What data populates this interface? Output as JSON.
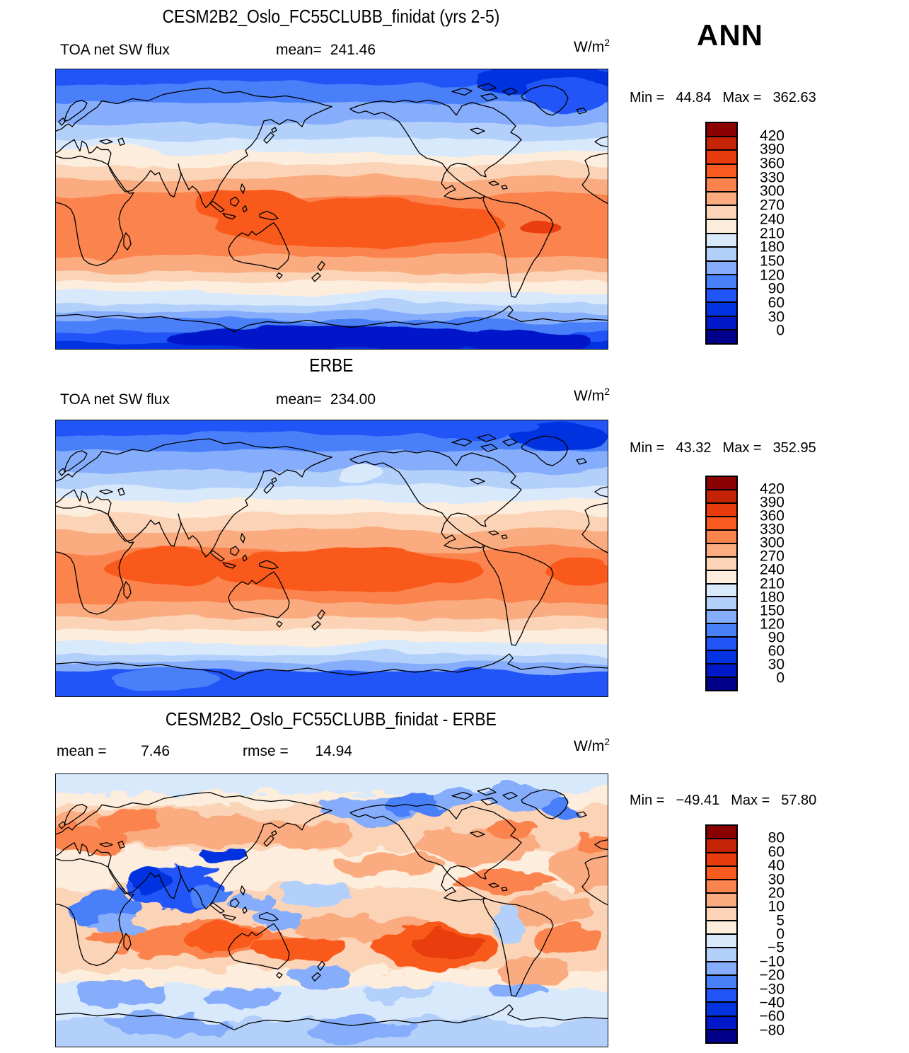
{
  "season": "ANN",
  "chart_data": [
    {
      "type": "contour-map",
      "title": "CESM2B2_Oslo_FC55CLUBB_finidat (yrs 2-5)",
      "var_label": "TOA net SW flux",
      "mean_label": "mean=",
      "mean": "241.46",
      "units_base": "W/m",
      "units_exp": "2",
      "min_label": "Min =",
      "min": "44.84",
      "max_label": "Max =",
      "max": "362.63",
      "legend_position": "right",
      "levels": [
        0,
        30,
        60,
        90,
        120,
        150,
        180,
        210,
        240,
        270,
        300,
        330,
        360,
        390,
        420
      ],
      "colorbar_ticks": [
        "420",
        "390",
        "360",
        "330",
        "300",
        "270",
        "240",
        "210",
        "180",
        "150",
        "120",
        "90",
        "60",
        "30",
        "0"
      ],
      "palette": [
        "#00008B",
        "#0019C8",
        "#0133E0",
        "#2255F7",
        "#4880FA",
        "#85ADFB",
        "#B3D0FA",
        "#D9E9FC",
        "#FDEDDC",
        "#FBD3B7",
        "#FAAC80",
        "#FB834E",
        "#F95A1F",
        "#E93C0E",
        "#C42305",
        "#8B0000"
      ],
      "zonal_bands": [
        [
          0,
          5,
          3
        ],
        [
          5,
          12,
          4
        ],
        [
          12,
          19,
          5
        ],
        [
          19,
          25,
          6
        ],
        [
          25,
          30,
          7
        ],
        [
          30,
          34,
          8
        ],
        [
          34,
          39,
          9
        ],
        [
          39,
          45,
          10
        ],
        [
          45,
          67,
          11
        ],
        [
          67,
          72,
          10
        ],
        [
          72,
          76,
          9
        ],
        [
          76,
          80,
          8
        ],
        [
          80,
          84,
          7
        ],
        [
          84,
          87,
          6
        ],
        [
          87,
          90,
          5
        ],
        [
          90,
          94,
          4
        ],
        [
          94,
          97,
          3
        ],
        [
          97,
          100,
          2
        ]
      ],
      "features": [
        [
          55,
          55,
          26,
          9,
          12
        ],
        [
          36,
          49,
          11,
          6,
          12
        ],
        [
          63,
          56,
          14,
          5,
          12
        ],
        [
          88,
          57,
          4,
          3,
          13
        ],
        [
          89,
          4,
          13,
          6,
          2
        ],
        [
          93,
          9,
          8,
          6,
          3
        ],
        [
          33,
          27,
          5,
          3,
          7
        ],
        [
          12,
          31,
          8,
          4,
          8
        ],
        [
          50,
          96,
          30,
          4,
          1
        ],
        [
          85,
          97,
          12,
          4,
          1
        ]
      ]
    },
    {
      "type": "contour-map",
      "title": "ERBE",
      "var_label": "TOA net SW flux",
      "mean_label": "mean=",
      "mean": "234.00",
      "units_base": "W/m",
      "units_exp": "2",
      "min_label": "Min =",
      "min": "43.32",
      "max_label": "Max =",
      "max": "352.95",
      "legend_position": "right",
      "levels": [
        0,
        30,
        60,
        90,
        120,
        150,
        180,
        210,
        240,
        270,
        300,
        330,
        360,
        390,
        420
      ],
      "colorbar_ticks": [
        "420",
        "390",
        "360",
        "330",
        "300",
        "270",
        "240",
        "210",
        "180",
        "150",
        "120",
        "90",
        "60",
        "30",
        "0"
      ],
      "palette": [
        "#00008B",
        "#0019C8",
        "#0133E0",
        "#2255F7",
        "#4880FA",
        "#85ADFB",
        "#B3D0FA",
        "#D9E9FC",
        "#FDEDDC",
        "#FBD3B7",
        "#FAAC80",
        "#FB834E",
        "#F95A1F",
        "#E93C0E",
        "#C42305",
        "#8B0000"
      ],
      "zonal_bands": [
        [
          0,
          5,
          3
        ],
        [
          5,
          11,
          4
        ],
        [
          11,
          18,
          5
        ],
        [
          18,
          24,
          6
        ],
        [
          24,
          29,
          7
        ],
        [
          29,
          34,
          8
        ],
        [
          34,
          40,
          9
        ],
        [
          40,
          47,
          10
        ],
        [
          47,
          66,
          11
        ],
        [
          66,
          71,
          10
        ],
        [
          71,
          76,
          9
        ],
        [
          76,
          81,
          8
        ],
        [
          81,
          85,
          7
        ],
        [
          85,
          88,
          6
        ],
        [
          88,
          91,
          5
        ],
        [
          91,
          100,
          3
        ]
      ],
      "features": [
        [
          53,
          54,
          24,
          8,
          12
        ],
        [
          20,
          53,
          11,
          6,
          12
        ],
        [
          95,
          55,
          6,
          5,
          12
        ],
        [
          91,
          6,
          9,
          5,
          2
        ],
        [
          79,
          3,
          8,
          4,
          3
        ],
        [
          55,
          20,
          4,
          3,
          7
        ],
        [
          50,
          95,
          35,
          4,
          3
        ],
        [
          20,
          94,
          10,
          3,
          4
        ]
      ]
    },
    {
      "type": "contour-map-difference",
      "title": "CESM2B2_Oslo_FC55CLUBB_finidat - ERBE",
      "mean_label": "mean =",
      "mean": "7.46",
      "rmse_label": "rmse =",
      "rmse": "14.94",
      "units_base": "W/m",
      "units_exp": "2",
      "min_label": "Min =",
      "min": "−49.41",
      "max_label": "Max =",
      "max": "57.80",
      "legend_position": "right",
      "levels": [
        -80,
        -60,
        -40,
        -30,
        -20,
        -10,
        -5,
        0,
        5,
        10,
        20,
        30,
        40,
        60,
        80
      ],
      "colorbar_ticks": [
        "80",
        "60",
        "40",
        "30",
        "20",
        "10",
        "5",
        "0",
        "−5",
        "−10",
        "−20",
        "−30",
        "−40",
        "−60",
        "−80"
      ],
      "palette": [
        "#00008B",
        "#0019C8",
        "#0133E0",
        "#2255F7",
        "#4880FA",
        "#85ADFB",
        "#B3D0FA",
        "#D9E9FC",
        "#FDEDDC",
        "#FBD3B7",
        "#FAAC80",
        "#FB834E",
        "#F95A1F",
        "#E93C0E",
        "#C42305",
        "#8B0000"
      ],
      "zonal_bands": [
        [
          0,
          7,
          7
        ],
        [
          7,
          12,
          8
        ],
        [
          12,
          28,
          9
        ],
        [
          28,
          42,
          8
        ],
        [
          42,
          72,
          9
        ],
        [
          72,
          78,
          8
        ],
        [
          78,
          90,
          7
        ],
        [
          90,
          100,
          6
        ]
      ],
      "features": [
        [
          17,
          20,
          21,
          7,
          10
        ],
        [
          44,
          23,
          9,
          5,
          10
        ],
        [
          60,
          33,
          10,
          4,
          10
        ],
        [
          76,
          26,
          11,
          6,
          10
        ],
        [
          96,
          33,
          6,
          10,
          10
        ],
        [
          81,
          39,
          9,
          4,
          11
        ],
        [
          90,
          50,
          8,
          6,
          10
        ],
        [
          55,
          57,
          12,
          5,
          10
        ],
        [
          87,
          73,
          6,
          4,
          10
        ],
        [
          6,
          24,
          7,
          5,
          11
        ],
        [
          13,
          17,
          6,
          4,
          11
        ],
        [
          83,
          21,
          5,
          3,
          11
        ],
        [
          98,
          25,
          4,
          4,
          11
        ],
        [
          24,
          61,
          19,
          6,
          11
        ],
        [
          93,
          61,
          6,
          5,
          11
        ],
        [
          30,
          60,
          8,
          4,
          12
        ],
        [
          44,
          64,
          8,
          4,
          12
        ],
        [
          69,
          64,
          11,
          8,
          12
        ],
        [
          71,
          63,
          6,
          5,
          13
        ],
        [
          57,
          13,
          9,
          5,
          5
        ],
        [
          66,
          11,
          6,
          4,
          4
        ],
        [
          73,
          9,
          5,
          4,
          5
        ],
        [
          84,
          8,
          7,
          5,
          5
        ],
        [
          91,
          13,
          4,
          3,
          4
        ],
        [
          47,
          44,
          7,
          3,
          6
        ],
        [
          36,
          47,
          4,
          3,
          5
        ],
        [
          40,
          53,
          5,
          4,
          5
        ],
        [
          22,
          42,
          9,
          8,
          3
        ],
        [
          17,
          39,
          4,
          4,
          2
        ],
        [
          30,
          30,
          4,
          3,
          2
        ],
        [
          28,
          44,
          4,
          4,
          4
        ],
        [
          9,
          49,
          6,
          6,
          4
        ],
        [
          12,
          55,
          5,
          4,
          5
        ],
        [
          82,
          55,
          3,
          6,
          6
        ],
        [
          48,
          74,
          6,
          4,
          5
        ],
        [
          12,
          80,
          8,
          4,
          5
        ],
        [
          34,
          82,
          7,
          4,
          5
        ],
        [
          62,
          80,
          6,
          3,
          6
        ],
        [
          84,
          79,
          5,
          3,
          5
        ],
        [
          20,
          92,
          12,
          4,
          5
        ],
        [
          55,
          94,
          10,
          4,
          5
        ],
        [
          75,
          92,
          8,
          3,
          6
        ]
      ]
    }
  ]
}
